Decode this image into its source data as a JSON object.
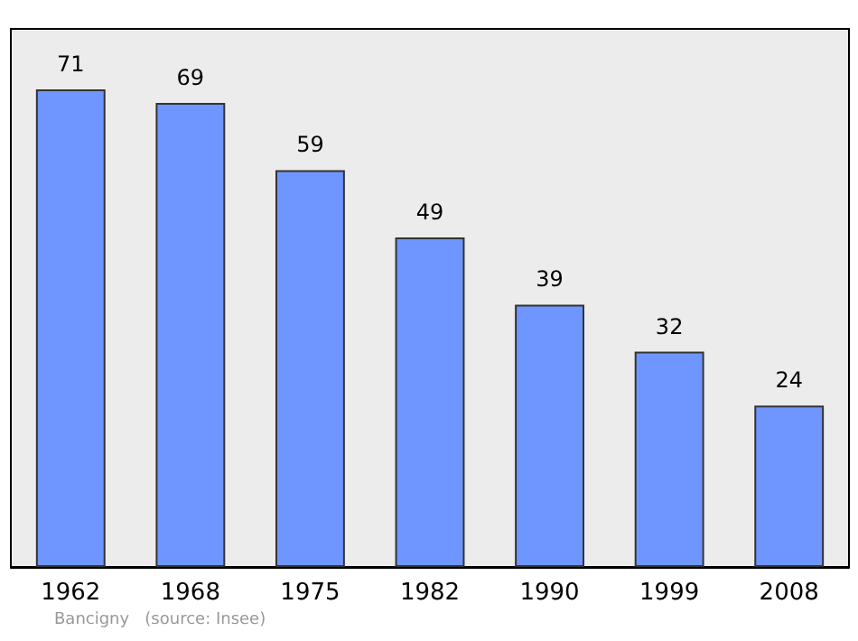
{
  "chart_data": {
    "type": "bar",
    "categories": [
      "1962",
      "1968",
      "1975",
      "1982",
      "1990",
      "1999",
      "2008"
    ],
    "values": [
      71,
      69,
      59,
      49,
      39,
      32,
      24
    ],
    "color": "#6f96ff",
    "data_labels": true,
    "annotations": [
      "Bancigny   (source: Insee)"
    ]
  }
}
